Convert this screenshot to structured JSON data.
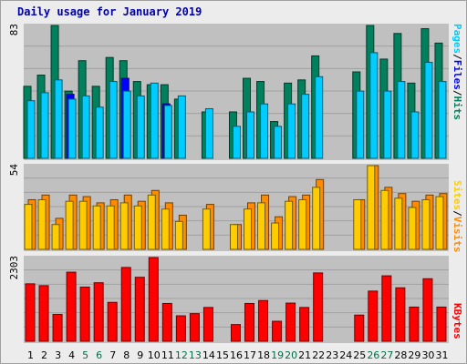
{
  "title": "Daily usage for January 2019",
  "colors": {
    "title": "#0000aa",
    "hits": "#00805c",
    "files": "#0000ff",
    "pages": "#00ccff",
    "visits": "#ff8c00",
    "sites": "#ffcc00",
    "kbytes": "#ff0000",
    "weekday_label": "#000000",
    "weekend_label": "#006e4a",
    "panel_bg": "#c0c0c0",
    "frame_bg": "#ececec"
  },
  "legend": {
    "pages": "Pages",
    "files": "Files",
    "hits": "Hits",
    "sep": "/",
    "sites": "Sites",
    "visits": "Visits",
    "kbytes": "KBytes"
  },
  "chart_data": [
    {
      "type": "bar",
      "title": "Daily usage for January 2019",
      "ymax_label": "83",
      "ylim": [
        0,
        83
      ],
      "grid": true,
      "categories": [
        "1",
        "2",
        "3",
        "4",
        "5",
        "6",
        "7",
        "8",
        "9",
        "10",
        "11",
        "12",
        "13",
        "14",
        "15",
        "16",
        "17",
        "18",
        "19",
        "20",
        "21",
        "22",
        "23",
        "24",
        "25",
        "26",
        "27",
        "28",
        "29",
        "30",
        "31"
      ],
      "weekend_days": [
        "5",
        "6",
        "12",
        "13",
        "19",
        "20",
        "26",
        "27"
      ],
      "series": [
        {
          "name": "Hits",
          "values": [
            45,
            52,
            83,
            42,
            61,
            45,
            63,
            61,
            48,
            46,
            46,
            37,
            0,
            29,
            0,
            29,
            50,
            48,
            23,
            47,
            49,
            64,
            0,
            0,
            54,
            83,
            62,
            78,
            47,
            81,
            72
          ]
        },
        {
          "name": "Files",
          "values": [
            0,
            0,
            0,
            40,
            0,
            0,
            0,
            50,
            0,
            0,
            34,
            0,
            0,
            0,
            0,
            0,
            0,
            0,
            0,
            0,
            0,
            0,
            0,
            0,
            0,
            0,
            0,
            0,
            0,
            0,
            0
          ]
        },
        {
          "name": "Pages",
          "values": [
            36,
            41,
            49,
            37,
            39,
            32,
            48,
            42,
            39,
            47,
            33,
            39,
            0,
            31,
            0,
            20,
            29,
            34,
            20,
            34,
            40,
            51,
            0,
            0,
            42,
            66,
            42,
            48,
            29,
            60,
            48
          ]
        }
      ]
    },
    {
      "type": "bar",
      "ymax_label": "54",
      "ylim": [
        0,
        54
      ],
      "grid": true,
      "categories": [
        "1",
        "2",
        "3",
        "4",
        "5",
        "6",
        "7",
        "8",
        "9",
        "10",
        "11",
        "12",
        "13",
        "14",
        "15",
        "16",
        "17",
        "18",
        "19",
        "20",
        "21",
        "22",
        "23",
        "24",
        "25",
        "26",
        "27",
        "28",
        "29",
        "30",
        "31"
      ],
      "series": [
        {
          "name": "Visits",
          "values": [
            32,
            35,
            20,
            35,
            34,
            30,
            32,
            35,
            31,
            38,
            30,
            22,
            0,
            29,
            0,
            16,
            30,
            35,
            21,
            34,
            35,
            45,
            0,
            0,
            32,
            54,
            40,
            36,
            31,
            35,
            36
          ]
        },
        {
          "name": "Sites",
          "values": [
            29,
            32,
            16,
            31,
            31,
            28,
            28,
            30,
            28,
            35,
            26,
            18,
            0,
            26,
            0,
            16,
            26,
            30,
            17,
            31,
            32,
            40,
            0,
            0,
            32,
            54,
            38,
            33,
            27,
            32,
            34
          ]
        }
      ]
    },
    {
      "type": "bar",
      "ymax_label": "2303",
      "ylim": [
        0,
        2303
      ],
      "grid": true,
      "categories": [
        "1",
        "2",
        "3",
        "4",
        "5",
        "6",
        "7",
        "8",
        "9",
        "10",
        "11",
        "12",
        "13",
        "14",
        "15",
        "16",
        "17",
        "18",
        "19",
        "20",
        "21",
        "22",
        "23",
        "24",
        "25",
        "26",
        "27",
        "28",
        "29",
        "30",
        "31"
      ],
      "series": [
        {
          "name": "KBytes",
          "values": [
            1580,
            1530,
            740,
            1900,
            1490,
            1610,
            1070,
            2030,
            1760,
            2303,
            1040,
            700,
            760,
            930,
            0,
            460,
            1040,
            1120,
            550,
            1050,
            930,
            1880,
            0,
            0,
            720,
            1380,
            1800,
            1470,
            940,
            1720,
            940
          ]
        }
      ]
    }
  ]
}
